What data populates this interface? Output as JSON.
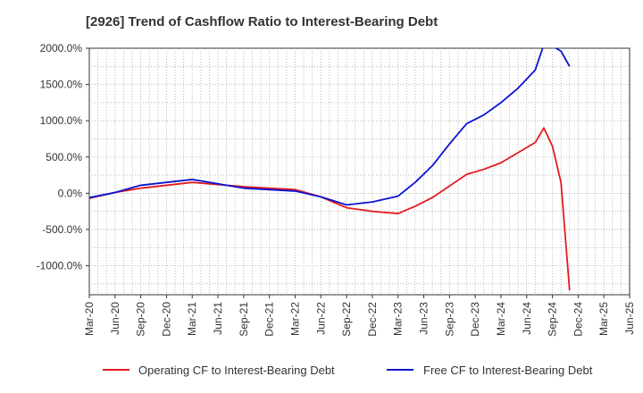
{
  "chart_data": {
    "type": "line",
    "title": "[2926]  Trend of Cashflow Ratio to Interest-Bearing Debt",
    "xlabel": "",
    "ylabel": "",
    "ylim": [
      -1400,
      2000
    ],
    "y_ticks": [
      2000,
      1500,
      1000,
      500,
      0,
      -500,
      -1000
    ],
    "y_tick_labels": [
      "2000.0%",
      "1500.0%",
      "1000.0%",
      "500.0%",
      "0.0%",
      "-500.0%",
      "-1000.0%"
    ],
    "x_ticks": [
      "Mar-20",
      "Jun-20",
      "Sep-20",
      "Dec-20",
      "Mar-21",
      "Jun-21",
      "Sep-21",
      "Dec-21",
      "Mar-22",
      "Jun-22",
      "Sep-22",
      "Dec-22",
      "Mar-23",
      "Jun-23",
      "Sep-23",
      "Dec-23",
      "Mar-24",
      "Jun-24",
      "Sep-24",
      "Dec-24",
      "Mar-25",
      "Jun-25"
    ],
    "grid": true,
    "legend_position": "bottom",
    "series": [
      {
        "name": "Operating CF to Interest-Bearing Debt",
        "color": "#e31a1c",
        "points": [
          [
            0,
            -70
          ],
          [
            3,
            10
          ],
          [
            6,
            70
          ],
          [
            9,
            110
          ],
          [
            12,
            150
          ],
          [
            15,
            120
          ],
          [
            18,
            90
          ],
          [
            21,
            70
          ],
          [
            24,
            50
          ],
          [
            27,
            -50
          ],
          [
            30,
            -200
          ],
          [
            33,
            -250
          ],
          [
            36,
            -280
          ],
          [
            38,
            -180
          ],
          [
            40,
            -60
          ],
          [
            42,
            100
          ],
          [
            44,
            260
          ],
          [
            46,
            330
          ],
          [
            48,
            420
          ],
          [
            50,
            560
          ],
          [
            52,
            700
          ],
          [
            53,
            900
          ],
          [
            54,
            650
          ],
          [
            55,
            150
          ],
          [
            56,
            -1340
          ]
        ]
      },
      {
        "name": "Free CF to Interest-Bearing Debt",
        "color": "#0a14d2",
        "points": [
          [
            0,
            -60
          ],
          [
            3,
            10
          ],
          [
            6,
            110
          ],
          [
            9,
            150
          ],
          [
            12,
            190
          ],
          [
            15,
            130
          ],
          [
            18,
            70
          ],
          [
            21,
            50
          ],
          [
            24,
            30
          ],
          [
            27,
            -50
          ],
          [
            30,
            -160
          ],
          [
            33,
            -120
          ],
          [
            36,
            -40
          ],
          [
            38,
            150
          ],
          [
            40,
            380
          ],
          [
            42,
            680
          ],
          [
            44,
            960
          ],
          [
            46,
            1080
          ],
          [
            48,
            1250
          ],
          [
            50,
            1450
          ],
          [
            52,
            1700
          ],
          [
            53,
            2050
          ],
          [
            54,
            2030
          ],
          [
            55,
            1960
          ],
          [
            56,
            1750
          ]
        ]
      }
    ]
  }
}
